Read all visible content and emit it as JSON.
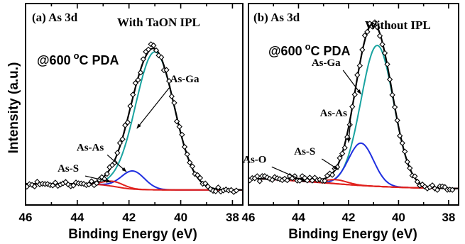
{
  "figure": {
    "ylabel": "Intensity (a.u.)"
  },
  "chart_data": [
    {
      "type": "line",
      "panel_label": "(a) As 3d",
      "condition": "With TaON IPL",
      "anneal_text": "@600",
      "anneal_sup": "o",
      "anneal_suffix": "C PDA",
      "xlabel": "Binding Energy (eV)",
      "ylabel": "Intensity (a.u.)",
      "xlim": [
        46,
        37.6
      ],
      "ylim": [
        0,
        1
      ],
      "x_reversed": true,
      "xticks": [
        "46",
        "44",
        "42",
        "40",
        "38"
      ],
      "y_ticks_shown": false,
      "grid": false,
      "background": {
        "a": 0.075,
        "b": 0.105,
        "center": 42.5,
        "width": 0.35
      },
      "components": [
        {
          "name": "As-Ga",
          "center": 41.0,
          "sigma": 0.75,
          "amp": 0.685,
          "color": "#19a3a0"
        },
        {
          "name": "As-As",
          "center": 41.85,
          "sigma": 0.45,
          "amp": 0.09,
          "color": "#1f2fe0"
        },
        {
          "name": "As-S",
          "center": 42.6,
          "sigma": 0.4,
          "amp": 0.025,
          "color": "#e0201c"
        }
      ],
      "annotations": [
        {
          "text": "As-Ga",
          "x": 39.85,
          "y": 0.61,
          "arrow_to": [
            41.7,
            0.38
          ]
        },
        {
          "text": "As-As",
          "x": 43.5,
          "y": 0.27,
          "arrow_to": [
            42.1,
            0.165
          ]
        },
        {
          "text": "As-S",
          "x": 44.35,
          "y": 0.165,
          "arrow_to": [
            42.7,
            0.115
          ]
        }
      ],
      "series_colors": {
        "fit": "#000000",
        "data": "#000000"
      }
    },
    {
      "type": "line",
      "panel_label": "(b) As 3d",
      "condition": "Without IPL",
      "anneal_text": "@600",
      "anneal_sup": "o",
      "anneal_suffix": "C PDA",
      "xlabel": "Binding Energy (eV)",
      "ylabel": "",
      "xlim": [
        46,
        37.6
      ],
      "ylim": [
        0,
        1
      ],
      "x_reversed": true,
      "xticks": [
        "46",
        "44",
        "42",
        "40",
        "38"
      ],
      "y_ticks_shown": false,
      "grid": false,
      "background": {
        "a": 0.08,
        "b": 0.14,
        "center": 43.0,
        "width": 1.6
      },
      "components": [
        {
          "name": "As-Ga",
          "center": 40.85,
          "sigma": 0.65,
          "amp": 0.7,
          "color": "#19a3a0"
        },
        {
          "name": "As-As",
          "center": 41.5,
          "sigma": 0.5,
          "amp": 0.21,
          "color": "#1f2fe0"
        },
        {
          "name": "As-S",
          "center": 42.5,
          "sigma": 0.45,
          "amp": 0.02,
          "color": "#e0201c"
        },
        {
          "name": "As-O",
          "center": 43.9,
          "sigma": 0.55,
          "amp": 0.012,
          "color": "#e0201c"
        }
      ],
      "annotations": [
        {
          "text": "As-Ga",
          "x": 42.9,
          "y": 0.69,
          "arrow_to": [
            41.5,
            0.55
          ]
        },
        {
          "text": "As-As",
          "x": 42.6,
          "y": 0.44,
          "arrow_to": [
            42.0,
            0.31
          ]
        },
        {
          "text": "As-S",
          "x": 43.75,
          "y": 0.25,
          "arrow_to": [
            42.4,
            0.175
          ]
        },
        {
          "text": "As-O",
          "x": 45.75,
          "y": 0.21,
          "arrow_to": [
            43.7,
            0.115
          ]
        }
      ],
      "series_colors": {
        "fit": "#000000",
        "data": "#000000"
      }
    }
  ]
}
